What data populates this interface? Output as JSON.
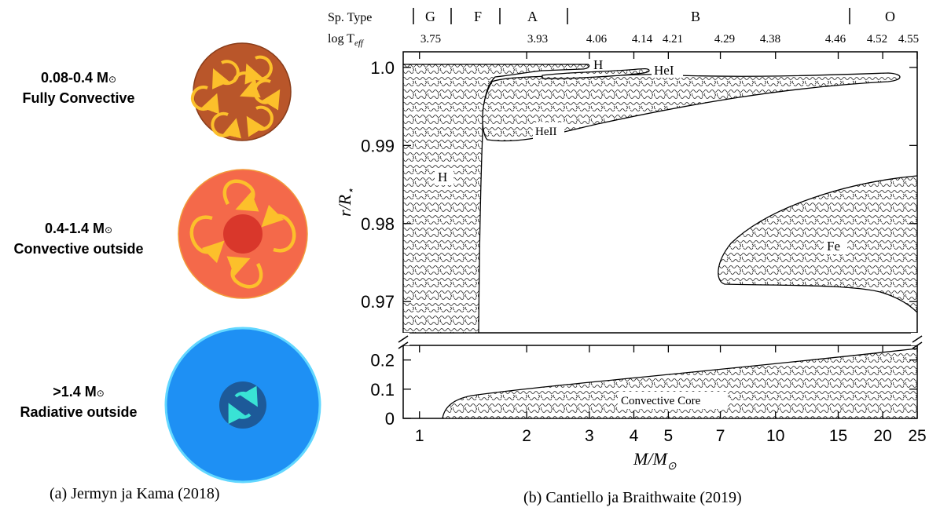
{
  "panel_a": {
    "stars": [
      {
        "mass": "0.08-0.4 M",
        "kind": "Fully Convective"
      },
      {
        "mass": "0.4-1.4 M",
        "kind": "Convective outside"
      },
      {
        "mass": ">1.4 M",
        "kind": "Radiative outside"
      }
    ],
    "sun_symbol": "⊙",
    "caption": "(a) Jermyn ja Kama (2018)",
    "colors": {
      "fully_convective": "#b9562a",
      "convective_outside": "#f4694a",
      "core_red": "#d9372b",
      "radiative": "#1e90f4",
      "radiative_rim": "#62d7ff",
      "core_blue": "#1d5a99",
      "arrow_yellow": "#fcc02b",
      "arrow_cyan": "#39e3d5"
    }
  },
  "panel_b": {
    "caption": "(b) Cantiello ja Braithwaite (2019)",
    "sp_type_label": "Sp. Type",
    "sp_types": [
      "G",
      "F",
      "A",
      "B",
      "O"
    ],
    "logt_label_main": "log T",
    "logt_label_sub": "eff",
    "logt_ticks": [
      "3.75",
      "3.93",
      "4.06",
      "4.14",
      "4.21",
      "4.29",
      "4.38",
      "4.46",
      "4.52",
      "4.55"
    ],
    "ylabel_main": "r/R",
    "ylabel_sub": "⋆",
    "xlabel_main": "M/M",
    "xlabel_sub": "⊙",
    "x_ticks": [
      "1",
      "2",
      "3",
      "4",
      "5",
      "7",
      "10",
      "15",
      "20",
      "25"
    ],
    "y_ticks_upper": [
      "1.0",
      "0.99",
      "0.98",
      "0.97"
    ],
    "y_ticks_lower": [
      "0.2",
      "0.1",
      "0"
    ],
    "regions": [
      "H",
      "HeI",
      "HeII",
      "H",
      "Fe",
      "Convective Core"
    ]
  },
  "chart_data": {
    "type": "area",
    "x_scale": "log",
    "xlim": [
      0.9,
      25
    ],
    "ylim_upper": [
      0.966,
      1.002
    ],
    "ylim_lower": [
      0,
      0.25
    ],
    "grid": false,
    "convective_regions": [
      {
        "name": "H",
        "x_range": [
          0.9,
          1.3
        ],
        "r_range": [
          0.966,
          0.9995
        ]
      },
      {
        "name": "HeII",
        "x_range": [
          1.3,
          21
        ],
        "r_range": [
          0.99,
          0.998
        ]
      },
      {
        "name": "H",
        "x_range": [
          1.6,
          2.8
        ],
        "r_range": [
          0.999,
          1.0
        ]
      },
      {
        "name": "HeI",
        "x_range": [
          2.0,
          4.2
        ],
        "r_range": [
          0.998,
          0.999
        ]
      },
      {
        "name": "Fe",
        "x_range": [
          6.5,
          25
        ],
        "r_range": [
          0.967,
          0.9855
        ]
      },
      {
        "name": "Convective Core",
        "x_range": [
          1.1,
          25
        ],
        "r_range": [
          0,
          0.24
        ]
      }
    ]
  }
}
